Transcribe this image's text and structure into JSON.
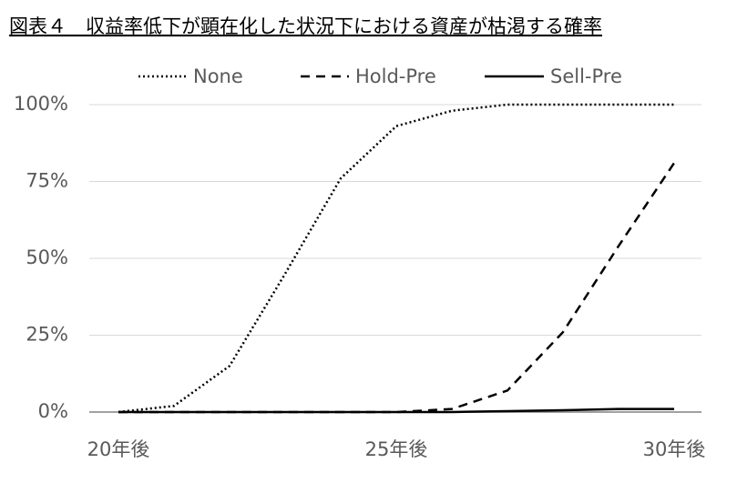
{
  "chart_data": {
    "type": "line",
    "title": "図表４　収益率低下が顕在化した状況下における資産が枯渇する確率",
    "categories": [
      "20年後",
      null,
      null,
      null,
      null,
      "25年後",
      null,
      null,
      null,
      null,
      "30年後"
    ],
    "series": [
      {
        "name": "None",
        "color": "#000000",
        "dash": "dotted",
        "values": [
          0,
          2,
          15,
          45,
          76,
          93,
          98,
          100,
          100,
          100,
          100
        ]
      },
      {
        "name": "Hold-Pre",
        "color": "#000000",
        "dash": "dashed",
        "values": [
          0,
          0,
          0,
          0,
          0,
          0,
          1,
          7,
          26,
          54,
          81
        ]
      },
      {
        "name": "Sell-Pre",
        "color": "#000000",
        "dash": "solid",
        "values": [
          0,
          0,
          0,
          0,
          0,
          0,
          0,
          0.3,
          0.6,
          1,
          1
        ]
      }
    ],
    "ylim": [
      0,
      100
    ],
    "yticks": [
      {
        "value": 0,
        "label": "0%"
      },
      {
        "value": 25,
        "label": "25%"
      },
      {
        "value": 50,
        "label": "50%"
      },
      {
        "value": 75,
        "label": "75%"
      },
      {
        "value": 100,
        "label": "100%"
      }
    ],
    "grid": true,
    "legend": "top"
  }
}
